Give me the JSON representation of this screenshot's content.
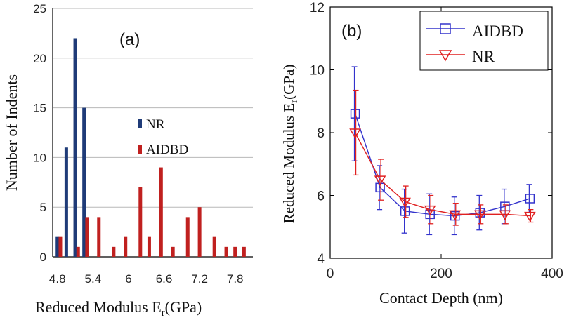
{
  "chart_data": [
    {
      "type": "bar",
      "panel_label": "(a)",
      "title": "",
      "xlabel": "Reduced Modulus E",
      "xlabel_sub": "r",
      "xlabel_unit": "(GPa)",
      "ylabel": "Number of Indents",
      "ylim": [
        0,
        25
      ],
      "yticks": [
        "0",
        "5",
        "10",
        "15",
        "20",
        "25"
      ],
      "xticks": [
        {
          "value": 4.8,
          "label": "4.8"
        },
        {
          "value": 5.4,
          "label": "5.4"
        },
        {
          "value": 6.0,
          "label": "6"
        },
        {
          "value": 6.6,
          "label": "6.6"
        },
        {
          "value": 7.2,
          "label": "7.2"
        },
        {
          "value": 7.8,
          "label": "7.8"
        }
      ],
      "grid": true,
      "legend_position": "center",
      "series": [
        {
          "name": "NR",
          "color": "#1f3b78",
          "points": [
            {
              "x": 4.8,
              "y": 2
            },
            {
              "x": 4.95,
              "y": 11
            },
            {
              "x": 5.1,
              "y": 22
            },
            {
              "x": 5.25,
              "y": 15
            }
          ]
        },
        {
          "name": "AIDBD",
          "color": "#c0201f",
          "points": [
            {
              "x": 4.85,
              "y": 2
            },
            {
              "x": 5.15,
              "y": 1
            },
            {
              "x": 5.3,
              "y": 4
            },
            {
              "x": 5.5,
              "y": 4
            },
            {
              "x": 5.75,
              "y": 1
            },
            {
              "x": 5.95,
              "y": 2
            },
            {
              "x": 6.2,
              "y": 7
            },
            {
              "x": 6.35,
              "y": 2
            },
            {
              "x": 6.55,
              "y": 9
            },
            {
              "x": 6.75,
              "y": 1
            },
            {
              "x": 7.0,
              "y": 4
            },
            {
              "x": 7.2,
              "y": 5
            },
            {
              "x": 7.45,
              "y": 2
            },
            {
              "x": 7.65,
              "y": 1
            },
            {
              "x": 7.8,
              "y": 1
            },
            {
              "x": 7.95,
              "y": 1
            }
          ]
        }
      ]
    },
    {
      "type": "line",
      "panel_label": "(b)",
      "title": "",
      "xlabel": "Contact Depth (nm)",
      "ylabel": "Reduced Modulus E",
      "ylabel_sub": "r",
      "ylabel_unit": "(GPa)",
      "xlim": [
        0,
        400
      ],
      "ylim": [
        4,
        12
      ],
      "xticks": [
        "0",
        "200",
        "400"
      ],
      "yticks": [
        "4",
        "6",
        "8",
        "10",
        "12"
      ],
      "legend_position": "top-right",
      "series": [
        {
          "name": "AIDBD",
          "color": "#3333cc",
          "marker": "square",
          "x": [
            45,
            90,
            135,
            180,
            225,
            270,
            315,
            360
          ],
          "y": [
            8.6,
            6.25,
            5.5,
            5.4,
            5.35,
            5.45,
            5.65,
            5.9
          ],
          "err": [
            1.5,
            0.7,
            0.7,
            0.65,
            0.6,
            0.55,
            0.55,
            0.45
          ]
        },
        {
          "name": "NR",
          "color": "#e02020",
          "marker": "triangle-down",
          "x": [
            45,
            90,
            135,
            180,
            225,
            270,
            315,
            360
          ],
          "y": [
            8.0,
            6.5,
            5.8,
            5.55,
            5.4,
            5.4,
            5.4,
            5.35
          ],
          "err": [
            1.35,
            0.65,
            0.5,
            0.45,
            0.35,
            0.3,
            0.3,
            0.2
          ]
        }
      ]
    }
  ]
}
